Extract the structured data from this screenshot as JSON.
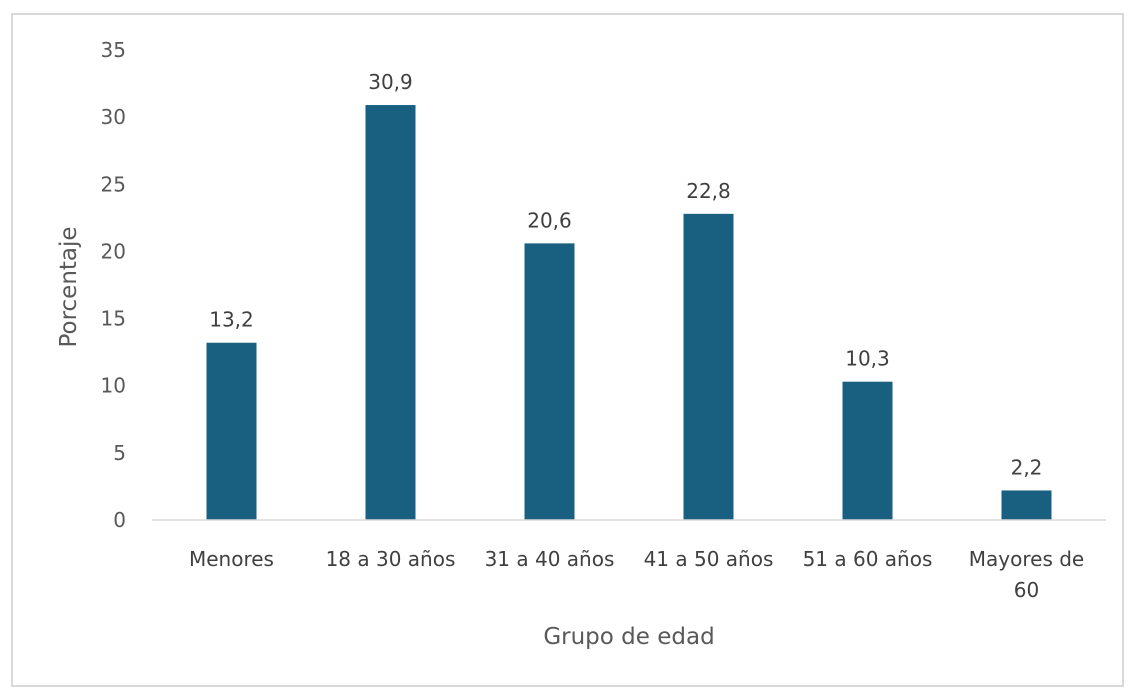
{
  "chart_data": {
    "type": "bar",
    "categories": [
      "Menores",
      "18 a 30 años",
      "31 a 40 años",
      "41 a 50 años",
      "51 a 60 años",
      "Mayores de 60"
    ],
    "category_lines": [
      [
        "Menores"
      ],
      [
        "18 a 30 años"
      ],
      [
        "31 a 40 años"
      ],
      [
        "41 a 50 años"
      ],
      [
        "51 a 60 años"
      ],
      [
        "Mayores de",
        "60"
      ]
    ],
    "values": [
      13.2,
      30.9,
      20.6,
      22.8,
      10.3,
      2.2
    ],
    "data_labels": [
      "13,2",
      "30,9",
      "20,6",
      "22,8",
      "10,3",
      "2,2"
    ],
    "xlabel": "Grupo de edad",
    "ylabel": "Porcentaje",
    "ylim": [
      0,
      35
    ],
    "yticks": [
      0,
      5,
      10,
      15,
      20,
      25,
      30,
      35
    ],
    "grid": false,
    "legend": "none",
    "bar_color": "#185f80"
  }
}
